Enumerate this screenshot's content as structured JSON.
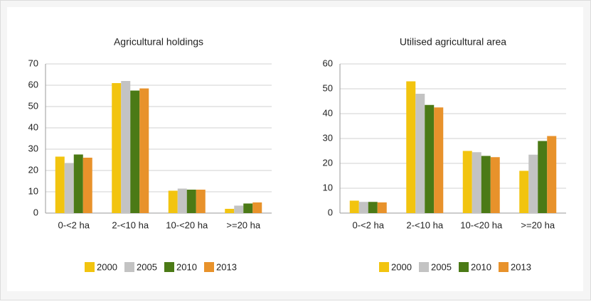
{
  "chart_data": [
    {
      "type": "bar",
      "title": "Agricultural holdings",
      "categories": [
        "0-<2 ha",
        "2-<10 ha",
        "10-<20 ha",
        ">=20 ha"
      ],
      "series": [
        {
          "name": "2000",
          "color": "#f2c40f",
          "values": [
            26.5,
            61,
            10.5,
            2
          ]
        },
        {
          "name": "2005",
          "color": "#c3c3c3",
          "values": [
            23.5,
            62,
            11.5,
            3.5
          ]
        },
        {
          "name": "2010",
          "color": "#4b7a16",
          "values": [
            27.5,
            57.5,
            11,
            4.5
          ]
        },
        {
          "name": "2013",
          "color": "#e8922b",
          "values": [
            26,
            58.5,
            11,
            5
          ]
        }
      ],
      "ylim": [
        0,
        70
      ],
      "yticks": [
        0,
        10,
        20,
        30,
        40,
        50,
        60,
        70
      ],
      "grid": true,
      "legend": "bottom"
    },
    {
      "type": "bar",
      "title": "Utilised agricultural area",
      "categories": [
        "0-<2 ha",
        "2-<10 ha",
        "10-<20 ha",
        ">=20 ha"
      ],
      "series": [
        {
          "name": "2000",
          "color": "#f2c40f",
          "values": [
            5,
            53,
            25,
            17
          ]
        },
        {
          "name": "2005",
          "color": "#c3c3c3",
          "values": [
            4.5,
            48,
            24.5,
            23.5
          ]
        },
        {
          "name": "2010",
          "color": "#4b7a16",
          "values": [
            4.5,
            43.5,
            23,
            29
          ]
        },
        {
          "name": "2013",
          "color": "#e8922b",
          "values": [
            4.3,
            42.5,
            22.5,
            31
          ]
        }
      ],
      "ylim": [
        0,
        60
      ],
      "yticks": [
        0,
        10,
        20,
        30,
        40,
        50,
        60
      ],
      "grid": true,
      "legend": "bottom"
    }
  ]
}
